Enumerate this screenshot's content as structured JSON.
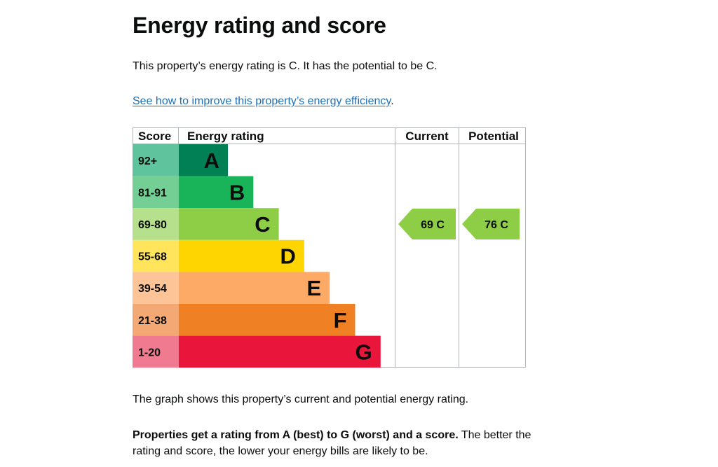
{
  "page": {
    "title": "Energy rating and score",
    "intro": "This property’s energy rating is C. It has the potential to be C.",
    "link_text": "See how to improve this property’s energy efficiency",
    "link_suffix": ".",
    "graph_note": "The graph shows this property’s current and potential energy rating.",
    "rating_note_bold": "Properties get a rating from A (best) to G (worst) and a score.",
    "rating_note_rest": " The better the rating and score, the lower your energy bills are likely to be."
  },
  "chart_data": {
    "type": "bar",
    "headers": {
      "score": "Score",
      "rating": "Energy rating",
      "current": "Current",
      "potential": "Potential"
    },
    "bands": [
      {
        "letter": "A",
        "range": "92+",
        "color": "#008054",
        "score_bg": "#5fc49d"
      },
      {
        "letter": "B",
        "range": "81-91",
        "color": "#19b459",
        "score_bg": "#74cf94"
      },
      {
        "letter": "C",
        "range": "69-80",
        "color": "#8dce46",
        "score_bg": "#b6e08c"
      },
      {
        "letter": "D",
        "range": "55-68",
        "color": "#ffd500",
        "score_bg": "#ffe45c"
      },
      {
        "letter": "E",
        "range": "39-54",
        "color": "#fcaa65",
        "score_bg": "#fdc597"
      },
      {
        "letter": "F",
        "range": "21-38",
        "color": "#ef8023",
        "score_bg": "#f4a873"
      },
      {
        "letter": "G",
        "range": "1-20",
        "color": "#e9153b",
        "score_bg": "#f07a8f"
      }
    ],
    "current": {
      "score": 69,
      "letter": "C",
      "label": "69 C",
      "color": "#8dce46"
    },
    "potential": {
      "score": 76,
      "letter": "C",
      "label": "76 C",
      "color": "#8dce46"
    }
  }
}
